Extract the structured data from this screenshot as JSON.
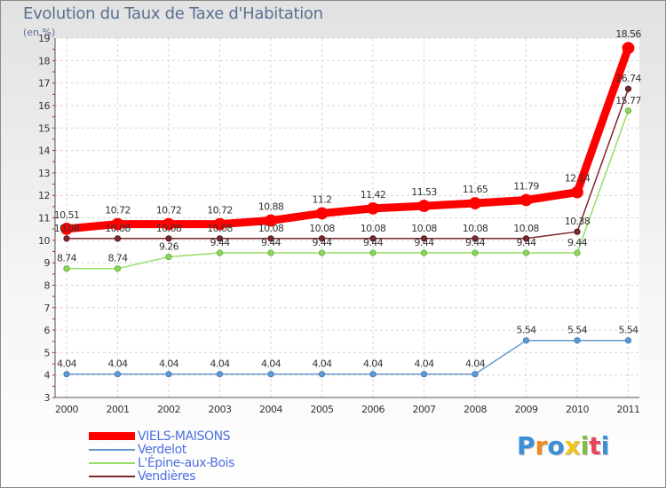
{
  "header": {
    "title": "Evolution du Taux de Taxe d'Habitation",
    "subtitle": "(en %)"
  },
  "logo": {
    "text": "Proxiti"
  },
  "chart_data": {
    "type": "line",
    "categories": [
      "2000",
      "2001",
      "2002",
      "2003",
      "2004",
      "2005",
      "2006",
      "2007",
      "2008",
      "2009",
      "2010",
      "2011"
    ],
    "ylim": [
      3,
      19
    ],
    "yticks": [
      3,
      4,
      5,
      6,
      7,
      8,
      9,
      10,
      11,
      12,
      13,
      14,
      15,
      16,
      17,
      18,
      19
    ],
    "grid": true,
    "legend_position": "bottom-left",
    "series": [
      {
        "name": "VIELS-MAISONS",
        "color": "#ff0000",
        "values": [
          10.51,
          10.72,
          10.72,
          10.72,
          10.88,
          11.2,
          11.42,
          11.53,
          11.65,
          11.79,
          12.14,
          18.56
        ],
        "labels": [
          "10.51",
          "10.72",
          "10.72",
          "10.72",
          "10.88",
          "11.2",
          "11.42",
          "11.53",
          "11.65",
          "11.79",
          "12.14",
          "18.56"
        ]
      },
      {
        "name": "Verdelot",
        "color": "#6699cc",
        "values": [
          4.04,
          4.04,
          4.04,
          4.04,
          4.04,
          4.04,
          4.04,
          4.04,
          4.04,
          5.54,
          5.54,
          5.54
        ],
        "labels": [
          "4.04",
          "4.04",
          "4.04",
          "4.04",
          "4.04",
          "4.04",
          "4.04",
          "4.04",
          "4.04",
          "5.54",
          "5.54",
          "5.54"
        ]
      },
      {
        "name": "L'Épine-aux-Bois",
        "color": "#99dd66",
        "values": [
          8.74,
          8.74,
          9.26,
          9.44,
          9.44,
          9.44,
          9.44,
          9.44,
          9.44,
          9.44,
          9.44,
          15.77
        ],
        "labels": [
          "8.74",
          "8.74",
          "9.26",
          "9.44",
          "9.44",
          "9.44",
          "9.44",
          "9.44",
          "9.44",
          "9.44",
          "9.44",
          "15.77"
        ]
      },
      {
        "name": "Vendières",
        "color": "#7a2a2a",
        "values": [
          10.08,
          10.08,
          10.08,
          10.08,
          10.08,
          10.08,
          10.08,
          10.08,
          10.08,
          10.08,
          10.38,
          16.74
        ],
        "labels": [
          "10.08",
          "10.08",
          "10.08",
          "10.08",
          "10.08",
          "10.08",
          "10.08",
          "10.08",
          "10.08",
          "10.08",
          "10.38",
          "16.74"
        ]
      }
    ]
  }
}
